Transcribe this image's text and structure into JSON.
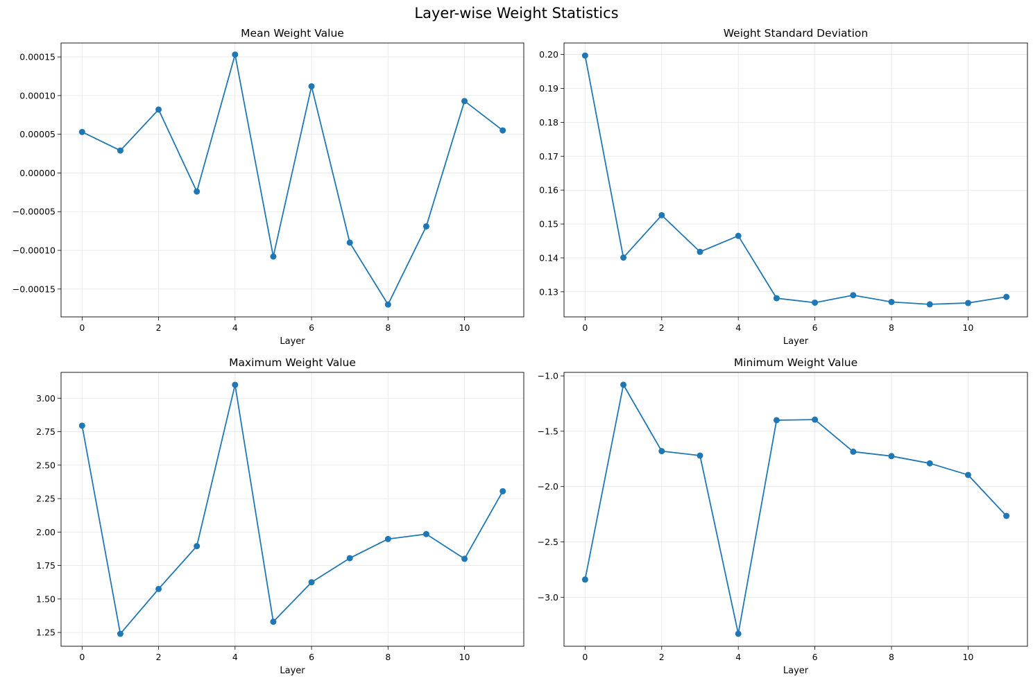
{
  "figure": {
    "title": "Layer-wise Weight Statistics",
    "line_color": "#1f77b4",
    "grid_color": "#e6e6e6"
  },
  "chart_data": [
    {
      "type": "line",
      "title": "Mean Weight Value",
      "xlabel": "Layer",
      "ylabel": "",
      "grid": true,
      "marker": "circle",
      "x": [
        0,
        1,
        2,
        3,
        4,
        5,
        6,
        7,
        8,
        9,
        10,
        11
      ],
      "series": [
        {
          "values": [
            5.3e-05,
            2.9e-05,
            8.2e-05,
            -2.4e-05,
            0.000153,
            -0.000108,
            0.000112,
            -9e-05,
            -0.00017,
            -6.9e-05,
            9.3e-05,
            5.5e-05
          ]
        }
      ],
      "xlim": [
        -0.55,
        11.55
      ],
      "ylim": [
        -0.000186,
        0.000168
      ],
      "xticks": [
        0,
        2,
        4,
        6,
        8,
        10
      ],
      "xtick_labels": [
        "0",
        "2",
        "4",
        "6",
        "8",
        "10"
      ],
      "yticks": [
        -0.00015,
        -0.0001,
        -5e-05,
        0,
        5e-05,
        0.0001,
        0.00015
      ],
      "ytick_labels": [
        "−0.00015",
        "−0.00010",
        "−0.00005",
        "0.00000",
        "0.00005",
        "0.00010",
        "0.00015"
      ]
    },
    {
      "type": "line",
      "title": "Weight Standard Deviation",
      "xlabel": "Layer",
      "ylabel": "",
      "grid": true,
      "marker": "circle",
      "x": [
        0,
        1,
        2,
        3,
        4,
        5,
        6,
        7,
        8,
        9,
        10,
        11
      ],
      "series": [
        {
          "values": [
            0.1997,
            0.1401,
            0.1526,
            0.1418,
            0.1465,
            0.1281,
            0.1268,
            0.129,
            0.127,
            0.1263,
            0.1267,
            0.1285
          ]
        }
      ],
      "xlim": [
        -0.55,
        11.55
      ],
      "ylim": [
        0.1226,
        0.2034
      ],
      "xticks": [
        0,
        2,
        4,
        6,
        8,
        10
      ],
      "xtick_labels": [
        "0",
        "2",
        "4",
        "6",
        "8",
        "10"
      ],
      "yticks": [
        0.13,
        0.14,
        0.15,
        0.16,
        0.17,
        0.18,
        0.19,
        0.2
      ],
      "ytick_labels": [
        "0.13",
        "0.14",
        "0.15",
        "0.16",
        "0.17",
        "0.18",
        "0.19",
        "0.20"
      ]
    },
    {
      "type": "line",
      "title": "Maximum Weight Value",
      "xlabel": "Layer",
      "ylabel": "",
      "grid": true,
      "marker": "circle",
      "x": [
        0,
        1,
        2,
        3,
        4,
        5,
        6,
        7,
        8,
        9,
        10,
        11
      ],
      "series": [
        {
          "values": [
            2.795,
            1.24,
            1.575,
            1.895,
            3.1,
            1.33,
            1.625,
            1.805,
            1.948,
            1.985,
            1.8,
            2.305
          ]
        }
      ],
      "xlim": [
        -0.55,
        11.55
      ],
      "ylim": [
        1.147,
        3.193
      ],
      "xticks": [
        0,
        2,
        4,
        6,
        8,
        10
      ],
      "xtick_labels": [
        "0",
        "2",
        "4",
        "6",
        "8",
        "10"
      ],
      "yticks": [
        1.25,
        1.5,
        1.75,
        2.0,
        2.25,
        2.5,
        2.75,
        3.0
      ],
      "ytick_labels": [
        "1.25",
        "1.50",
        "1.75",
        "2.00",
        "2.25",
        "2.50",
        "2.75",
        "3.00"
      ]
    },
    {
      "type": "line",
      "title": "Minimum Weight Value",
      "xlabel": "Layer",
      "ylabel": "",
      "grid": true,
      "marker": "circle",
      "x": [
        0,
        1,
        2,
        3,
        4,
        5,
        6,
        7,
        8,
        9,
        10,
        11
      ],
      "series": [
        {
          "values": [
            -2.84,
            -1.08,
            -1.68,
            -1.72,
            -3.33,
            -1.4,
            -1.395,
            -1.685,
            -1.725,
            -1.79,
            -1.895,
            -2.265
          ]
        }
      ],
      "xlim": [
        -0.55,
        11.55
      ],
      "ylim": [
        -3.443,
        -0.968
      ],
      "xticks": [
        0,
        2,
        4,
        6,
        8,
        10
      ],
      "xtick_labels": [
        "0",
        "2",
        "4",
        "6",
        "8",
        "10"
      ],
      "yticks": [
        -3.0,
        -2.5,
        -2.0,
        -1.5,
        -1.0
      ],
      "ytick_labels": [
        "−3.0",
        "−2.5",
        "−2.0",
        "−1.5",
        "−1.0"
      ]
    }
  ]
}
